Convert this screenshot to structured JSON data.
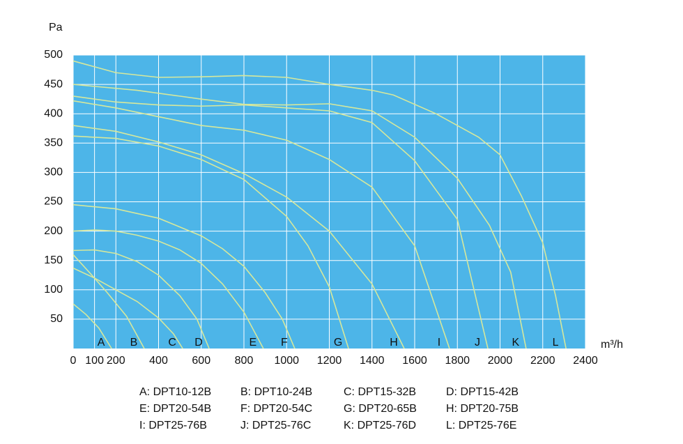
{
  "chart_data": {
    "type": "line",
    "y_label": "Pa",
    "x_label": "m³/h",
    "xlim": [
      0,
      2400
    ],
    "ylim": [
      0,
      500
    ],
    "xticks": [
      0,
      100,
      200,
      400,
      600,
      800,
      1000,
      1200,
      1400,
      1600,
      1800,
      2000,
      2200,
      2400
    ],
    "yticks": [
      50,
      100,
      150,
      200,
      250,
      300,
      350,
      400,
      450,
      500
    ],
    "grid": true,
    "background": "#4db5e8",
    "line_color": "#d6e89c",
    "series": [
      {
        "name": "A: DPT10-12B",
        "tag": "A",
        "x": [
          0,
          60,
          120,
          180
        ],
        "values": [
          76,
          58,
          35,
          0
        ]
      },
      {
        "name": "B: DPT10-24B",
        "tag": "B",
        "x": [
          0,
          80,
          160,
          250,
          333
        ],
        "values": [
          160,
          128,
          95,
          55,
          0
        ]
      },
      {
        "name": "C: DPT15-32B",
        "tag": "C",
        "x": [
          0,
          100,
          200,
          300,
          400,
          470,
          513
        ],
        "values": [
          137,
          120,
          100,
          80,
          52,
          25,
          0
        ]
      },
      {
        "name": "D: DPT15-42B",
        "tag": "D",
        "x": [
          0,
          100,
          200,
          300,
          400,
          500,
          580,
          637
        ],
        "values": [
          167,
          168,
          162,
          148,
          125,
          90,
          50,
          0
        ]
      },
      {
        "name": "E: DPT20-54B",
        "tag": "E",
        "x": [
          0,
          100,
          200,
          300,
          400,
          500,
          600,
          700,
          800,
          891
        ],
        "values": [
          200,
          202,
          200,
          193,
          183,
          168,
          145,
          110,
          62,
          0
        ]
      },
      {
        "name": "F: DPT20-54C",
        "tag": "F",
        "x": [
          0,
          200,
          400,
          600,
          700,
          800,
          900,
          980,
          1038
        ],
        "values": [
          245,
          238,
          222,
          192,
          170,
          140,
          95,
          50,
          0
        ]
      },
      {
        "name": "G: DPT20-65B",
        "tag": "G",
        "x": [
          0,
          200,
          400,
          600,
          800,
          1000,
          1100,
          1200,
          1290
        ],
        "values": [
          362,
          358,
          345,
          322,
          288,
          225,
          175,
          105,
          0
        ]
      },
      {
        "name": "H: DPT20-75B",
        "tag": "H",
        "x": [
          0,
          200,
          400,
          600,
          800,
          1000,
          1200,
          1400,
          1551
        ],
        "values": [
          380,
          370,
          352,
          330,
          298,
          258,
          200,
          110,
          0
        ]
      },
      {
        "name": "I: DPT25-76B",
        "tag": "I",
        "x": [
          0,
          200,
          400,
          600,
          800,
          1000,
          1200,
          1400,
          1600,
          1763
        ],
        "values": [
          422,
          410,
          395,
          380,
          372,
          355,
          322,
          275,
          175,
          0
        ]
      },
      {
        "name": "J: DPT25-76C",
        "tag": "J",
        "x": [
          0,
          200,
          400,
          600,
          800,
          1000,
          1200,
          1400,
          1600,
          1800,
          1943
        ],
        "values": [
          430,
          420,
          415,
          413,
          415,
          410,
          405,
          385,
          320,
          220,
          0
        ]
      },
      {
        "name": "K: DPT25-76D",
        "tag": "K",
        "x": [
          0,
          300,
          600,
          800,
          1000,
          1200,
          1400,
          1600,
          1800,
          1950,
          2050,
          2122
        ],
        "values": [
          450,
          440,
          425,
          416,
          415,
          417,
          405,
          360,
          290,
          210,
          130,
          0
        ]
      },
      {
        "name": "L: DPT25-76E",
        "tag": "L",
        "x": [
          0,
          200,
          400,
          600,
          800,
          1000,
          1200,
          1400,
          1500,
          1700,
          1900,
          2000,
          2100,
          2200,
          2260,
          2309
        ],
        "values": [
          490,
          470,
          462,
          463,
          465,
          462,
          450,
          440,
          432,
          400,
          360,
          330,
          260,
          180,
          90,
          0
        ]
      }
    ]
  }
}
